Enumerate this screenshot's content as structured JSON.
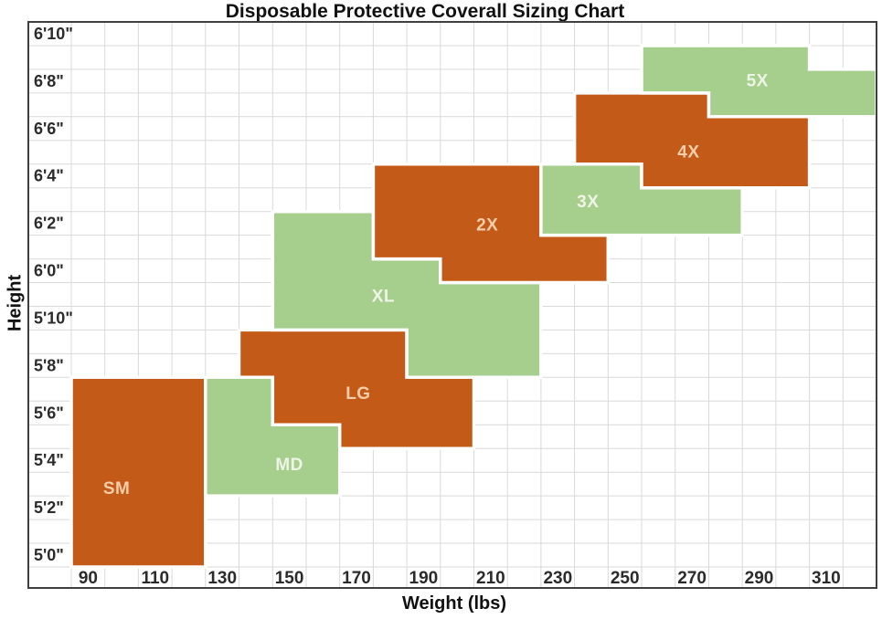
{
  "chart_data": {
    "type": "area",
    "title": "Disposable Protective Coverall Sizing Chart",
    "xlabel": "Weight (lbs)",
    "ylabel": "Height",
    "grid": true,
    "legend": false,
    "x_axis": {
      "min": 85,
      "max": 325,
      "grid_step": 10,
      "tick_weights": [
        90,
        110,
        130,
        150,
        170,
        190,
        210,
        230,
        250,
        270,
        290,
        310
      ],
      "tick_labels": [
        "90",
        "110",
        "130",
        "150",
        "170",
        "190",
        "210",
        "230",
        "250",
        "270",
        "290",
        "310"
      ]
    },
    "y_axis": {
      "min": 59.5,
      "max": 82.5,
      "grid_step": 1,
      "tick_inches": [
        82,
        80,
        78,
        76,
        74,
        72,
        70,
        68,
        66,
        64,
        62,
        60
      ],
      "tick_labels": [
        "6'10\"",
        "6'8\"",
        "6'6\"",
        "6'4\"",
        "6'2\"",
        "6'0\"",
        "5'10\"",
        "5'8\"",
        "5'6\"",
        "5'4\"",
        "5'2\"",
        "5'0\""
      ]
    },
    "colors": {
      "orange": "#C35A17",
      "green": "#A6CE8C",
      "orange_label": "#F8CDA9",
      "green_label": "#EEF5E7",
      "gridline": "#D9D9D9",
      "border": "#3F3F3F",
      "tick_text": "#2B2B2B",
      "region_stroke": "#FFFFFF"
    },
    "regions": [
      {
        "label": "SM",
        "palette": "orange",
        "weight_range_lbs": "85-125",
        "height_range": "5'0\"-5'7\"",
        "polygon": [
          [
            85,
            59.5
          ],
          [
            85,
            67.5
          ],
          [
            125,
            67.5
          ],
          [
            125,
            59.5
          ]
        ],
        "label_at": [
          98.5,
          62.8
        ]
      },
      {
        "label": "MD",
        "palette": "green",
        "weight_range_lbs": "125-165",
        "height_range": "5'3\"-5'7\"",
        "polygon": [
          [
            125,
            62.5
          ],
          [
            125,
            67.5
          ],
          [
            145,
            67.5
          ],
          [
            145,
            65.5
          ],
          [
            165,
            65.5
          ],
          [
            165,
            62.5
          ]
        ],
        "label_at": [
          150,
          63.8
        ]
      },
      {
        "label": "LG",
        "palette": "orange",
        "weight_range_lbs": "135-205",
        "height_range": "5'5\"-5'9\"",
        "polygon": [
          [
            135,
            67.5
          ],
          [
            135,
            69.5
          ],
          [
            185,
            69.5
          ],
          [
            185,
            67.5
          ],
          [
            205,
            67.5
          ],
          [
            205,
            64.5
          ],
          [
            165,
            64.5
          ],
          [
            165,
            65.5
          ],
          [
            145,
            65.5
          ],
          [
            145,
            67.5
          ]
        ],
        "label_at": [
          170.5,
          66.8
        ]
      },
      {
        "label": "XL",
        "palette": "green",
        "weight_range_lbs": "145-225",
        "height_range": "5'8\"-6'2\"",
        "polygon": [
          [
            145,
            69.5
          ],
          [
            145,
            74.5
          ],
          [
            175,
            74.5
          ],
          [
            175,
            72.5
          ],
          [
            195,
            72.5
          ],
          [
            195,
            71.5
          ],
          [
            225,
            71.5
          ],
          [
            225,
            67.5
          ],
          [
            185,
            67.5
          ],
          [
            185,
            69.5
          ]
        ],
        "label_at": [
          178,
          70.9
        ]
      },
      {
        "label": "2X",
        "palette": "orange",
        "weight_range_lbs": "175-245",
        "height_range": "6'0\"-6'4\"",
        "polygon": [
          [
            175,
            72.5
          ],
          [
            175,
            76.5
          ],
          [
            225,
            76.5
          ],
          [
            225,
            73.5
          ],
          [
            245,
            73.5
          ],
          [
            245,
            71.5
          ],
          [
            195,
            71.5
          ],
          [
            195,
            72.5
          ]
        ],
        "label_at": [
          209,
          73.9
        ]
      },
      {
        "label": "3X",
        "palette": "green",
        "weight_range_lbs": "225-285",
        "height_range": "6'2\"-6'4\"",
        "polygon": [
          [
            225,
            73.5
          ],
          [
            225,
            76.5
          ],
          [
            255,
            76.5
          ],
          [
            255,
            75.5
          ],
          [
            285,
            75.5
          ],
          [
            285,
            73.5
          ]
        ],
        "label_at": [
          239,
          74.9
        ]
      },
      {
        "label": "4X",
        "palette": "orange",
        "weight_range_lbs": "235-305",
        "height_range": "6'4\"-6'7\"",
        "polygon": [
          [
            235,
            76.5
          ],
          [
            235,
            79.5
          ],
          [
            275,
            79.5
          ],
          [
            275,
            78.5
          ],
          [
            305,
            78.5
          ],
          [
            305,
            75.5
          ],
          [
            255,
            75.5
          ],
          [
            255,
            76.5
          ]
        ],
        "label_at": [
          269,
          77.0
        ]
      },
      {
        "label": "5X",
        "palette": "green",
        "weight_range_lbs": "255-325",
        "height_range": "6'7\"-6'9\"",
        "polygon": [
          [
            255,
            79.5
          ],
          [
            255,
            81.5
          ],
          [
            305,
            81.5
          ],
          [
            305,
            80.5
          ],
          [
            325,
            80.5
          ],
          [
            325,
            78.5
          ],
          [
            275,
            78.5
          ],
          [
            275,
            79.5
          ]
        ],
        "label_at": [
          289.5,
          80.0
        ]
      }
    ]
  }
}
